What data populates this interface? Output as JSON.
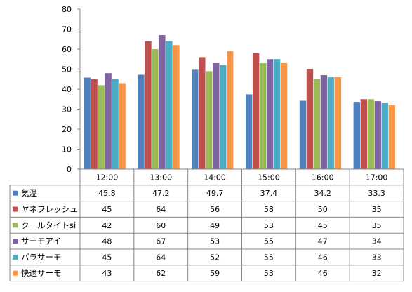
{
  "chart_data": {
    "type": "bar",
    "categories": [
      "12:00",
      "13:00",
      "14:00",
      "15:00",
      "16:00",
      "17:00"
    ],
    "ylim": [
      0,
      80
    ],
    "yticks": [
      0,
      10,
      20,
      30,
      40,
      50,
      60,
      70,
      80
    ],
    "grid": false,
    "legend_placement": "data table below chart",
    "series": [
      {
        "name": "気温",
        "color": "#4F81BD",
        "values": [
          45.8,
          47.2,
          49.7,
          37.4,
          34.2,
          33.3
        ],
        "labels": [
          "45.8",
          "47.2",
          "49.7",
          "37.4",
          "34.2",
          "33.3"
        ]
      },
      {
        "name": "ヤネフレッシュ",
        "color": "#C0504D",
        "values": [
          45,
          64,
          56,
          58,
          50,
          35
        ],
        "labels": [
          "45",
          "64",
          "56",
          "58",
          "50",
          "35"
        ]
      },
      {
        "name": "クールタイトsi",
        "color": "#9BBB59",
        "values": [
          42,
          60,
          49,
          53,
          45,
          35
        ],
        "labels": [
          "42",
          "60",
          "49",
          "53",
          "45",
          "35"
        ]
      },
      {
        "name": "サーモアイ",
        "color": "#8064A2",
        "values": [
          48,
          67,
          53,
          55,
          47,
          34
        ],
        "labels": [
          "48",
          "67",
          "53",
          "55",
          "47",
          "34"
        ]
      },
      {
        "name": "パラサーモ",
        "color": "#4BACC6",
        "values": [
          45,
          64,
          52,
          55,
          46,
          33
        ],
        "labels": [
          "45",
          "64",
          "52",
          "55",
          "46",
          "33"
        ]
      },
      {
        "name": "快適サーモ",
        "color": "#F79646",
        "values": [
          43,
          62,
          59,
          53,
          46,
          32
        ],
        "labels": [
          "43",
          "62",
          "59",
          "53",
          "46",
          "32"
        ]
      }
    ]
  }
}
